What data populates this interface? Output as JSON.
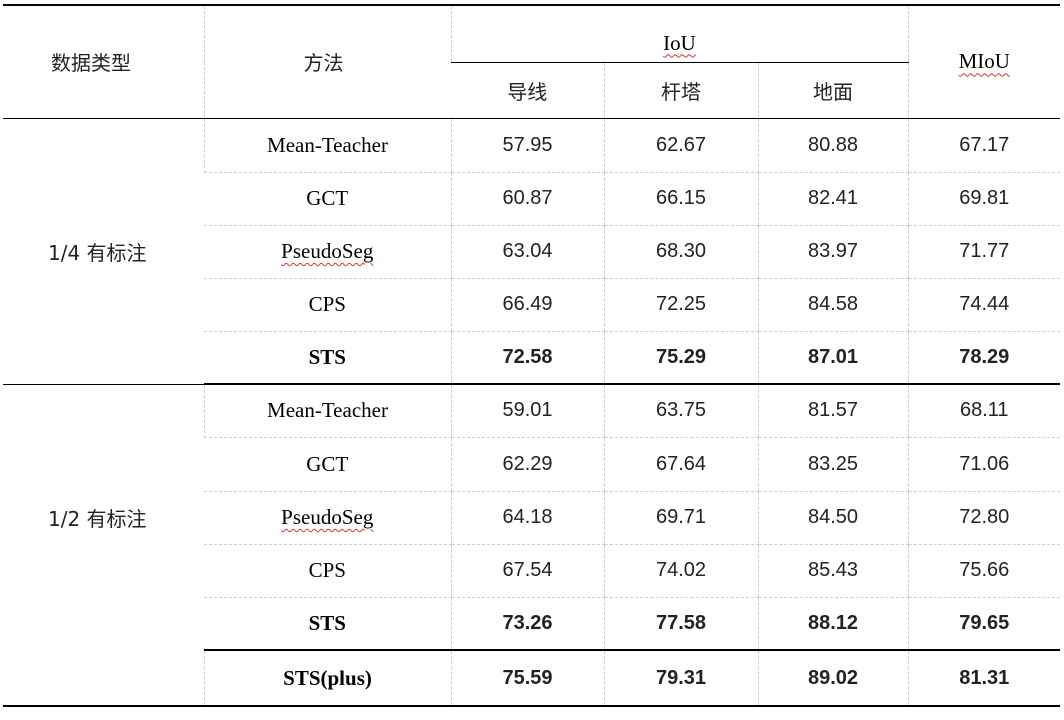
{
  "header": {
    "col_type": "数据类型",
    "col_method": "方法",
    "iou_group": "IoU",
    "miou": "MIoU",
    "classes": [
      "导线",
      "杆塔",
      "地面"
    ]
  },
  "groups": [
    {
      "label": "1/4 有标注",
      "rows": [
        {
          "method": "Mean-Teacher",
          "wire": "57.95",
          "tower": "62.67",
          "ground": "80.88",
          "miou": "67.17"
        },
        {
          "method": "GCT",
          "wire": "60.87",
          "tower": "66.15",
          "ground": "82.41",
          "miou": "69.81"
        },
        {
          "method": "PseudoSeg",
          "wire": "63.04",
          "tower": "68.30",
          "ground": "83.97",
          "miou": "71.77"
        },
        {
          "method": "CPS",
          "wire": "66.49",
          "tower": "72.25",
          "ground": "84.58",
          "miou": "74.44"
        },
        {
          "method": "STS",
          "wire": "72.58",
          "tower": "75.29",
          "ground": "87.01",
          "miou": "78.29"
        }
      ]
    },
    {
      "label": "1/2 有标注",
      "rows": [
        {
          "method": "Mean-Teacher",
          "wire": "59.01",
          "tower": "63.75",
          "ground": "81.57",
          "miou": "68.11"
        },
        {
          "method": "GCT",
          "wire": "62.29",
          "tower": "67.64",
          "ground": "83.25",
          "miou": "71.06"
        },
        {
          "method": "PseudoSeg",
          "wire": "64.18",
          "tower": "69.71",
          "ground": "84.50",
          "miou": "72.80"
        },
        {
          "method": "CPS",
          "wire": "67.54",
          "tower": "74.02",
          "ground": "85.43",
          "miou": "75.66"
        },
        {
          "method": "STS",
          "wire": "73.26",
          "tower": "77.58",
          "ground": "88.12",
          "miou": "79.65"
        }
      ]
    }
  ],
  "final_row": {
    "method": "STS(plus)",
    "wire": "75.59",
    "tower": "79.31",
    "ground": "89.02",
    "miou": "81.31"
  }
}
